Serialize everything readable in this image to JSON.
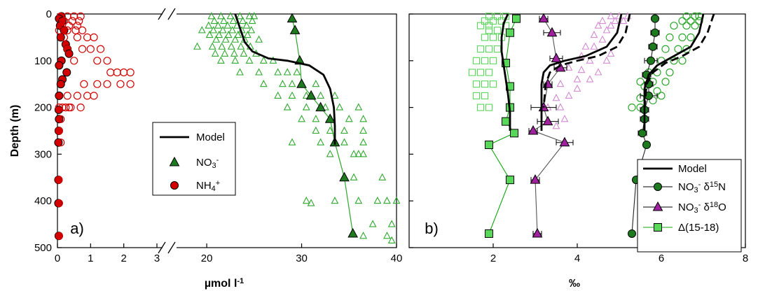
{
  "colors": {
    "ammonium": "#d40000",
    "nitrate": "#1e7a1e",
    "nitrate_light": "#2ea82e",
    "d18o": "#a0209f",
    "d18o_light": "#d28bd3",
    "delta": "#0fa80f",
    "delta_light": "#58d858",
    "model": "#000000"
  },
  "chart_data": [
    {
      "type": "scatter",
      "panel_label": "a)",
      "ylabel": "Depth (m)",
      "xlabel": "µmol l",
      "xlabel_sup": "-1",
      "ylim": [
        0,
        500
      ],
      "yticks": [
        0,
        100,
        200,
        300,
        400,
        500
      ],
      "y_inverted": true,
      "broken_x_axis": true,
      "x_segment_left": {
        "range": [
          0,
          3
        ],
        "ticks": [
          0,
          1,
          2,
          3
        ]
      },
      "x_segment_right": {
        "range": [
          18,
          40
        ],
        "ticks": [
          20,
          30,
          40
        ]
      },
      "legend": {
        "position": "center",
        "entries": [
          {
            "text": "Model",
            "marker": "line"
          },
          {
            "text": "NO",
            "sub": "3",
            "sup": "-",
            "marker": "triangle"
          },
          {
            "text": "NH",
            "sub": "4",
            "sup": "+",
            "marker": "circle"
          }
        ]
      },
      "series": [
        {
          "name": "NH4+",
          "segment": "left",
          "marker": "filled-circle",
          "x": [
            0.12,
            0.05,
            0.15,
            0.08,
            0.2,
            0.1,
            0.25,
            0.3,
            0.35,
            0.12,
            0.05,
            0.28,
            0.15,
            0.1,
            0.05,
            0.04,
            0.05,
            0.04,
            0.03,
            0.03,
            0.03,
            0.04
          ],
          "y": [
            5,
            10,
            15,
            25,
            35,
            50,
            65,
            75,
            85,
            100,
            110,
            125,
            140,
            150,
            175,
            205,
            225,
            250,
            275,
            355,
            405,
            475
          ]
        },
        {
          "name": "NH4+ data",
          "segment": "left",
          "marker": "open-circle",
          "x": [
            0.1,
            0.3,
            0.5,
            0.7,
            0.2,
            0.45,
            0.65,
            0.1,
            0.35,
            0.6,
            0.05,
            0.3,
            0.55,
            0.75,
            0.2,
            0.6,
            0.9,
            1.1,
            0.3,
            0.75,
            1.0,
            1.3,
            0.5,
            1.2,
            1.5,
            1.6,
            1.8,
            2.0,
            2.2,
            0.8,
            1.2,
            1.5,
            1.9,
            2.2,
            0.3,
            0.6,
            0.9,
            1.1,
            0.4,
            0.7,
            0.05,
            0.15,
            0.25,
            0.35,
            0.1,
            0.05,
            0.1,
            0.04,
            0.05,
            0.05
          ],
          "y": [
            5,
            5,
            5,
            5,
            15,
            15,
            15,
            25,
            25,
            25,
            35,
            35,
            35,
            35,
            50,
            50,
            50,
            50,
            75,
            75,
            75,
            75,
            100,
            100,
            100,
            125,
            125,
            125,
            125,
            150,
            150,
            150,
            150,
            150,
            175,
            175,
            175,
            175,
            200,
            200,
            200,
            200,
            200,
            200,
            225,
            250,
            275,
            355,
            405,
            475
          ]
        },
        {
          "name": "NO3- data",
          "segment": "right",
          "marker": "open-triangle",
          "x": [
            20.5,
            21.5,
            22.5,
            23.5,
            24.5,
            25.0,
            20.8,
            21.8,
            22.8,
            23.8,
            24.8,
            20.2,
            21.2,
            22.2,
            23.2,
            24.2,
            19.5,
            20.7,
            21.7,
            22.7,
            23.7,
            24.7,
            20.3,
            21.3,
            22.3,
            23.3,
            24.3,
            21.0,
            22.0,
            23.0,
            24.0,
            25.5,
            19.0,
            20.6,
            21.6,
            22.6,
            23.6,
            24.6,
            20.9,
            21.9,
            22.9,
            23.9,
            25.2,
            21.5,
            23.0,
            24.5,
            26.0,
            27.0,
            23.5,
            25.5,
            27.5,
            28.5,
            29.5,
            26.0,
            28.0,
            29.0,
            30.0,
            31.5,
            27.5,
            29.0,
            30.5,
            32.0,
            33.5,
            28.5,
            30.5,
            32.5,
            34.0,
            36.0,
            30.0,
            31.5,
            33.0,
            35.0,
            36.5,
            31.5,
            33.0,
            34.5,
            36.5,
            29.0,
            32.0,
            34.5,
            36.5,
            33.0,
            35.5,
            36.0,
            36.5,
            30.5,
            33.5,
            36.0,
            38.0,
            39.0,
            40.0,
            31.0,
            37.5,
            39.5,
            35.5,
            38.5,
            36.5,
            39.0,
            39.5
          ],
          "y": [
            5,
            5,
            5,
            5,
            5,
            5,
            15,
            15,
            15,
            15,
            15,
            25,
            25,
            25,
            25,
            25,
            35,
            35,
            35,
            35,
            35,
            35,
            45,
            45,
            45,
            45,
            45,
            55,
            55,
            55,
            55,
            55,
            70,
            70,
            70,
            70,
            70,
            70,
            85,
            85,
            85,
            85,
            85,
            100,
            100,
            100,
            100,
            100,
            125,
            125,
            125,
            125,
            125,
            150,
            150,
            150,
            150,
            150,
            175,
            175,
            175,
            175,
            175,
            200,
            200,
            200,
            200,
            200,
            225,
            225,
            225,
            225,
            225,
            250,
            250,
            250,
            250,
            275,
            275,
            275,
            275,
            300,
            300,
            300,
            300,
            400,
            400,
            400,
            400,
            400,
            400,
            405,
            450,
            450,
            350,
            350,
            475,
            475,
            485
          ]
        },
        {
          "name": "NO3-",
          "segment": "right",
          "marker": "filled-triangle",
          "line": true,
          "x": [
            29.0,
            29.3,
            29.8,
            30.0,
            31.0,
            32.0,
            33.0,
            33.5,
            34.5,
            35.4
          ],
          "y": [
            10,
            35,
            100,
            150,
            175,
            200,
            225,
            275,
            350,
            470
          ]
        },
        {
          "name": "Model",
          "segment": "right",
          "line": true,
          "marker": "none",
          "x": [
            23.0,
            23.5,
            24.0,
            24.8,
            26.5,
            28.5,
            30.8,
            32.3,
            33.0,
            33.4,
            33.5,
            33.5
          ],
          "y": [
            0,
            30,
            60,
            80,
            95,
            100,
            110,
            130,
            160,
            200,
            240,
            280
          ]
        }
      ]
    },
    {
      "type": "scatter",
      "panel_label": "b)",
      "xlabel": "‰",
      "xlim": [
        0,
        8
      ],
      "xticks": [
        2,
        4,
        6,
        8
      ],
      "ylim": [
        0,
        500
      ],
      "y_inverted": true,
      "legend": {
        "position": "bottom-right",
        "entries": [
          {
            "text": "Model",
            "marker": "line"
          },
          {
            "text": "NO",
            "sub": "3",
            "sup": "-",
            "text2": " δ",
            "sup2": "15",
            "text3": "N",
            "marker": "circle"
          },
          {
            "text": "NO",
            "sub": "3",
            "sup": "-",
            "text2": " δ",
            "sup2": "18",
            "text3": "O",
            "marker": "triangle"
          },
          {
            "text": "Δ(15-18)",
            "marker": "square"
          }
        ]
      },
      "series": [
        {
          "name": "Δ(15-18) data",
          "marker": "open-square",
          "x": [
            1.9,
            2.1,
            2.3,
            1.8,
            2.0,
            2.2,
            1.7,
            1.9,
            2.3,
            1.9,
            2.1,
            1.8,
            2.0,
            2.2,
            1.7,
            1.9,
            2.1,
            1.6,
            1.8,
            2.0,
            1.5,
            1.7,
            1.9,
            1.6,
            1.8,
            2.0,
            1.6,
            1.8,
            1.9,
            1.7
          ],
          "y": [
            5,
            5,
            5,
            15,
            15,
            15,
            25,
            25,
            25,
            35,
            35,
            50,
            50,
            50,
            75,
            75,
            75,
            100,
            100,
            100,
            125,
            125,
            125,
            150,
            150,
            150,
            175,
            175,
            200,
            200
          ]
        },
        {
          "name": "Δ(15-18)",
          "marker": "filled-square",
          "line": true,
          "x": [
            2.55,
            2.4,
            2.3,
            2.4,
            2.4,
            2.3,
            2.5,
            1.9,
            2.4,
            1.9
          ],
          "y": [
            10,
            40,
            105,
            155,
            200,
            230,
            255,
            280,
            355,
            470
          ]
        },
        {
          "name": "Model Δ",
          "line": true,
          "marker": "none",
          "x": [
            2.35,
            2.25,
            2.2,
            2.2,
            2.25,
            2.3,
            2.35,
            2.4,
            2.4
          ],
          "y": [
            0,
            20,
            50,
            80,
            110,
            140,
            170,
            210,
            250
          ]
        },
        {
          "name": "δ18O data",
          "marker": "open-triangle",
          "x": [
            4.8,
            5.0,
            5.2,
            4.6,
            4.9,
            5.1,
            4.5,
            4.8,
            4.7,
            4.4,
            4.6,
            4.2,
            4.4,
            4.8,
            4.1,
            4.3,
            4.7,
            3.8,
            4.1,
            4.5,
            4.0,
            4.3,
            3.6,
            4.0,
            3.8,
            3.5,
            3.3,
            3.6,
            3.7,
            3.5
          ],
          "y": [
            5,
            5,
            5,
            15,
            15,
            15,
            25,
            25,
            35,
            45,
            55,
            70,
            70,
            85,
            90,
            100,
            100,
            115,
            120,
            125,
            140,
            140,
            150,
            160,
            175,
            180,
            200,
            200,
            225,
            240
          ]
        },
        {
          "name": "NO3- δ18O",
          "marker": "filled-triangle",
          "line": true,
          "error_bars": true,
          "x": [
            3.2,
            3.4,
            3.5,
            3.6,
            3.3,
            3.2,
            3.3,
            2.95,
            3.7,
            3.0,
            3.05
          ],
          "y": [
            10,
            40,
            95,
            115,
            150,
            200,
            230,
            250,
            275,
            355,
            470
          ],
          "xerr": [
            0.1,
            0.2,
            0.15,
            0.15,
            0.1,
            0.3,
            0.25,
            0.1,
            0.2,
            0.1,
            0.1
          ]
        },
        {
          "name": "Model δ18O",
          "line": true,
          "marker": "none",
          "x": [
            5.05,
            4.95,
            4.7,
            4.2,
            3.7,
            3.35,
            3.2,
            3.15,
            3.15,
            3.15
          ],
          "y": [
            0,
            40,
            70,
            90,
            100,
            110,
            125,
            150,
            200,
            250
          ]
        },
        {
          "name": "Model δ18O dashed",
          "line": true,
          "dashed": true,
          "marker": "none",
          "x": [
            5.25,
            5.15,
            4.95,
            4.5,
            4.0,
            3.6,
            3.35,
            3.25,
            3.2
          ],
          "y": [
            0,
            40,
            70,
            90,
            100,
            110,
            125,
            150,
            200
          ]
        },
        {
          "name": "δ15N data",
          "marker": "open-circle",
          "x": [
            6.6,
            6.8,
            6.9,
            6.5,
            6.7,
            6.9,
            6.3,
            6.6,
            6.8,
            6.2,
            6.5,
            6.7,
            6.1,
            6.4,
            6.6,
            6.0,
            6.3,
            6.5,
            5.7,
            5.9,
            6.2,
            5.5,
            5.8,
            6.1,
            5.6,
            5.9,
            6.0,
            5.5,
            5.8,
            5.5,
            5.3
          ],
          "y": [
            5,
            5,
            5,
            15,
            15,
            15,
            25,
            25,
            25,
            50,
            50,
            50,
            75,
            75,
            75,
            100,
            100,
            100,
            125,
            125,
            125,
            145,
            145,
            145,
            155,
            165,
            175,
            180,
            185,
            200,
            200
          ]
        },
        {
          "name": "NO3- δ15N",
          "marker": "filled-circle",
          "line": true,
          "error_bars": true,
          "x": [
            5.85,
            5.85,
            5.8,
            5.75,
            5.65,
            5.7,
            5.7,
            5.6,
            5.6,
            5.55,
            5.65,
            5.4,
            5.3
          ],
          "y": [
            10,
            40,
            70,
            100,
            130,
            150,
            175,
            205,
            225,
            255,
            280,
            355,
            470
          ],
          "xerr": [
            0.05,
            0.1,
            0.1,
            0.15,
            0.1,
            0.1,
            0.2,
            0.1,
            0.1,
            0.1,
            0.05,
            0.05,
            0.05
          ]
        },
        {
          "name": "Model δ15N",
          "line": true,
          "marker": "none",
          "x": [
            7.0,
            6.9,
            6.7,
            6.3,
            5.9,
            5.7,
            5.6,
            5.6,
            5.6
          ],
          "y": [
            0,
            40,
            70,
            90,
            110,
            130,
            160,
            200,
            250
          ]
        },
        {
          "name": "Model δ15N dashed",
          "line": true,
          "dashed": true,
          "marker": "none",
          "x": [
            7.25,
            7.1,
            6.9,
            6.5,
            6.1,
            5.8,
            5.65,
            5.6
          ],
          "y": [
            0,
            40,
            70,
            90,
            105,
            125,
            150,
            200
          ]
        }
      ]
    }
  ]
}
